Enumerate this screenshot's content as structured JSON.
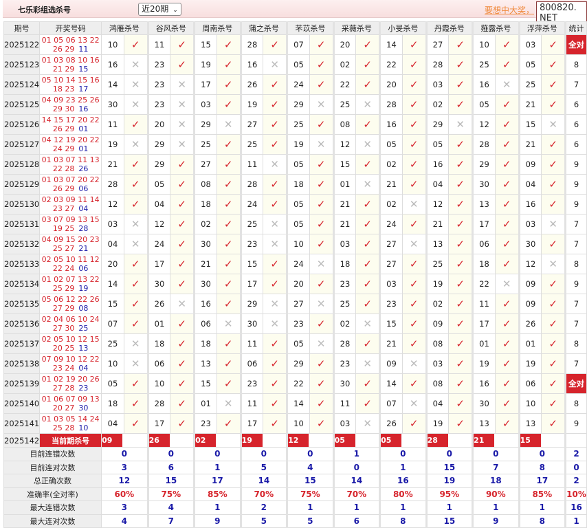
{
  "header": {
    "title": "七乐彩组选杀号",
    "period_select": "近20期",
    "promo_link": "要想中大奖，",
    "promo_box": "800820. NET"
  },
  "colors": {
    "accent_red": "#d6242c",
    "stat_blue": "#1a1aa8"
  },
  "columns": {
    "period": "期号",
    "draw": "开奖号码",
    "stat": "统计",
    "groups": [
      "鸿雁杀号",
      "谷风杀号",
      "周南杀号",
      "蒲之杀号",
      "芣苡杀号",
      "采薇杀号",
      "小旻杀号",
      "丹霞杀号",
      "薤露杀号",
      "浮萍杀号"
    ]
  },
  "rows": [
    {
      "period": "2025122",
      "red1": "01 05 06 13 22",
      "red2": "26 29",
      "blue": "11",
      "kills": [
        [
          "10",
          1
        ],
        [
          "11",
          1
        ],
        [
          "15",
          1
        ],
        [
          "28",
          1
        ],
        [
          "07",
          1
        ],
        [
          "20",
          1
        ],
        [
          "14",
          1
        ],
        [
          "27",
          1
        ],
        [
          "10",
          1
        ],
        [
          "03",
          1
        ]
      ],
      "stat": "全对"
    },
    {
      "period": "2025123",
      "red1": "01 03 08 10 16",
      "red2": "21 29",
      "blue": "15",
      "kills": [
        [
          "16",
          0
        ],
        [
          "23",
          1
        ],
        [
          "19",
          1
        ],
        [
          "16",
          0
        ],
        [
          "05",
          1
        ],
        [
          "02",
          1
        ],
        [
          "22",
          1
        ],
        [
          "28",
          1
        ],
        [
          "25",
          1
        ],
        [
          "05",
          1
        ]
      ],
      "stat": "8"
    },
    {
      "period": "2025124",
      "red1": "05 10 14 15 16",
      "red2": "18 23",
      "blue": "17",
      "kills": [
        [
          "14",
          0
        ],
        [
          "23",
          0
        ],
        [
          "17",
          1
        ],
        [
          "26",
          1
        ],
        [
          "24",
          1
        ],
        [
          "22",
          1
        ],
        [
          "20",
          1
        ],
        [
          "03",
          1
        ],
        [
          "16",
          0
        ],
        [
          "25",
          1
        ]
      ],
      "stat": "7"
    },
    {
      "period": "2025125",
      "red1": "04 09 23 25 26",
      "red2": "29 30",
      "blue": "16",
      "kills": [
        [
          "30",
          0
        ],
        [
          "23",
          0
        ],
        [
          "03",
          1
        ],
        [
          "19",
          1
        ],
        [
          "29",
          0
        ],
        [
          "25",
          0
        ],
        [
          "28",
          1
        ],
        [
          "02",
          1
        ],
        [
          "05",
          1
        ],
        [
          "21",
          1
        ]
      ],
      "stat": "6"
    },
    {
      "period": "2025126",
      "red1": "14 15 17 20 22",
      "red2": "26 29",
      "blue": "01",
      "kills": [
        [
          "11",
          1
        ],
        [
          "20",
          0
        ],
        [
          "29",
          0
        ],
        [
          "27",
          1
        ],
        [
          "25",
          1
        ],
        [
          "08",
          1
        ],
        [
          "16",
          1
        ],
        [
          "29",
          0
        ],
        [
          "12",
          1
        ],
        [
          "15",
          0
        ]
      ],
      "stat": "6"
    },
    {
      "period": "2025127",
      "red1": "04 12 19 20 22",
      "red2": "24 29",
      "blue": "01",
      "kills": [
        [
          "19",
          0
        ],
        [
          "29",
          0
        ],
        [
          "25",
          1
        ],
        [
          "25",
          1
        ],
        [
          "19",
          0
        ],
        [
          "12",
          0
        ],
        [
          "05",
          1
        ],
        [
          "05",
          1
        ],
        [
          "28",
          1
        ],
        [
          "21",
          1
        ]
      ],
      "stat": "6"
    },
    {
      "period": "2025128",
      "red1": "01 03 07 11 13",
      "red2": "22 28",
      "blue": "26",
      "kills": [
        [
          "21",
          1
        ],
        [
          "29",
          1
        ],
        [
          "27",
          1
        ],
        [
          "11",
          0
        ],
        [
          "05",
          1
        ],
        [
          "15",
          1
        ],
        [
          "02",
          1
        ],
        [
          "16",
          1
        ],
        [
          "29",
          1
        ],
        [
          "09",
          1
        ]
      ],
      "stat": "9"
    },
    {
      "period": "2025129",
      "red1": "01 03 07 20 22",
      "red2": "26 29",
      "blue": "06",
      "kills": [
        [
          "28",
          1
        ],
        [
          "05",
          1
        ],
        [
          "08",
          1
        ],
        [
          "28",
          1
        ],
        [
          "18",
          1
        ],
        [
          "01",
          0
        ],
        [
          "21",
          1
        ],
        [
          "04",
          1
        ],
        [
          "30",
          1
        ],
        [
          "04",
          1
        ]
      ],
      "stat": "9"
    },
    {
      "period": "2025130",
      "red1": "02 03 09 11 14",
      "red2": "23 27",
      "blue": "04",
      "kills": [
        [
          "12",
          1
        ],
        [
          "04",
          1
        ],
        [
          "18",
          1
        ],
        [
          "24",
          1
        ],
        [
          "05",
          1
        ],
        [
          "21",
          1
        ],
        [
          "02",
          0
        ],
        [
          "12",
          1
        ],
        [
          "13",
          1
        ],
        [
          "16",
          1
        ]
      ],
      "stat": "9"
    },
    {
      "period": "2025131",
      "red1": "03 07 09 13 15",
      "red2": "19 25",
      "blue": "28",
      "kills": [
        [
          "03",
          0
        ],
        [
          "12",
          1
        ],
        [
          "02",
          1
        ],
        [
          "25",
          0
        ],
        [
          "05",
          1
        ],
        [
          "21",
          1
        ],
        [
          "24",
          1
        ],
        [
          "21",
          1
        ],
        [
          "17",
          1
        ],
        [
          "03",
          0
        ]
      ],
      "stat": "7"
    },
    {
      "period": "2025132",
      "red1": "04 09 15 20 23",
      "red2": "25 27",
      "blue": "21",
      "kills": [
        [
          "04",
          0
        ],
        [
          "24",
          1
        ],
        [
          "30",
          1
        ],
        [
          "23",
          0
        ],
        [
          "10",
          1
        ],
        [
          "03",
          1
        ],
        [
          "27",
          0
        ],
        [
          "13",
          1
        ],
        [
          "06",
          1
        ],
        [
          "30",
          1
        ]
      ],
      "stat": "7"
    },
    {
      "period": "2025133",
      "red1": "02 05 10 11 12",
      "red2": "22 24",
      "blue": "06",
      "kills": [
        [
          "20",
          1
        ],
        [
          "17",
          1
        ],
        [
          "21",
          1
        ],
        [
          "15",
          1
        ],
        [
          "24",
          0
        ],
        [
          "18",
          1
        ],
        [
          "27",
          1
        ],
        [
          "25",
          1
        ],
        [
          "18",
          1
        ],
        [
          "12",
          0
        ]
      ],
      "stat": "8"
    },
    {
      "period": "2025134",
      "red1": "01 02 07 13 22",
      "red2": "25 29",
      "blue": "19",
      "kills": [
        [
          "14",
          1
        ],
        [
          "30",
          1
        ],
        [
          "30",
          1
        ],
        [
          "17",
          1
        ],
        [
          "20",
          1
        ],
        [
          "23",
          1
        ],
        [
          "03",
          1
        ],
        [
          "19",
          1
        ],
        [
          "22",
          0
        ],
        [
          "09",
          1
        ]
      ],
      "stat": "9"
    },
    {
      "period": "2025135",
      "red1": "05 06 12 22 26",
      "red2": "27 29",
      "blue": "08",
      "kills": [
        [
          "15",
          1
        ],
        [
          "26",
          0
        ],
        [
          "16",
          1
        ],
        [
          "29",
          0
        ],
        [
          "27",
          0
        ],
        [
          "25",
          1
        ],
        [
          "23",
          1
        ],
        [
          "02",
          1
        ],
        [
          "11",
          1
        ],
        [
          "09",
          1
        ]
      ],
      "stat": "7"
    },
    {
      "period": "2025136",
      "red1": "02 04 06 10 24",
      "red2": "27 30",
      "blue": "25",
      "kills": [
        [
          "07",
          1
        ],
        [
          "01",
          1
        ],
        [
          "06",
          0
        ],
        [
          "30",
          0
        ],
        [
          "23",
          1
        ],
        [
          "02",
          0
        ],
        [
          "15",
          1
        ],
        [
          "09",
          1
        ],
        [
          "17",
          1
        ],
        [
          "26",
          1
        ]
      ],
      "stat": "7"
    },
    {
      "period": "2025137",
      "red1": "02 05 10 12 15",
      "red2": "20 25",
      "blue": "13",
      "kills": [
        [
          "25",
          0
        ],
        [
          "18",
          1
        ],
        [
          "18",
          1
        ],
        [
          "11",
          1
        ],
        [
          "05",
          0
        ],
        [
          "28",
          1
        ],
        [
          "21",
          1
        ],
        [
          "08",
          1
        ],
        [
          "01",
          1
        ],
        [
          "01",
          1
        ]
      ],
      "stat": "8"
    },
    {
      "period": "2025138",
      "red1": "07 09 10 12 22",
      "red2": "23 24",
      "blue": "04",
      "kills": [
        [
          "10",
          0
        ],
        [
          "06",
          1
        ],
        [
          "13",
          1
        ],
        [
          "06",
          1
        ],
        [
          "29",
          1
        ],
        [
          "23",
          0
        ],
        [
          "09",
          0
        ],
        [
          "03",
          1
        ],
        [
          "19",
          1
        ],
        [
          "19",
          1
        ]
      ],
      "stat": "7"
    },
    {
      "period": "2025139",
      "red1": "01 02 19 20 26",
      "red2": "27 28",
      "blue": "23",
      "kills": [
        [
          "05",
          1
        ],
        [
          "10",
          1
        ],
        [
          "15",
          1
        ],
        [
          "23",
          1
        ],
        [
          "22",
          1
        ],
        [
          "30",
          1
        ],
        [
          "14",
          1
        ],
        [
          "08",
          1
        ],
        [
          "16",
          1
        ],
        [
          "06",
          1
        ]
      ],
      "stat": "全对"
    },
    {
      "period": "2025140",
      "red1": "01 06 07 09 13",
      "red2": "20 27",
      "blue": "30",
      "kills": [
        [
          "18",
          1
        ],
        [
          "28",
          1
        ],
        [
          "01",
          0
        ],
        [
          "11",
          1
        ],
        [
          "14",
          1
        ],
        [
          "11",
          1
        ],
        [
          "07",
          0
        ],
        [
          "04",
          1
        ],
        [
          "30",
          1
        ],
        [
          "10",
          1
        ]
      ],
      "stat": "8"
    },
    {
      "period": "2025141",
      "red1": "01 03 05 14 24",
      "red2": "25 28",
      "blue": "10",
      "kills": [
        [
          "04",
          1
        ],
        [
          "17",
          1
        ],
        [
          "23",
          1
        ],
        [
          "17",
          1
        ],
        [
          "10",
          1
        ],
        [
          "03",
          0
        ],
        [
          "26",
          1
        ],
        [
          "19",
          1
        ],
        [
          "13",
          1
        ],
        [
          "13",
          1
        ]
      ],
      "stat": "9"
    }
  ],
  "current": {
    "period": "2025142",
    "label": "当前期杀号",
    "kills": [
      "09",
      "26",
      "02",
      "19",
      "12",
      "05",
      "05",
      "28",
      "21",
      "15"
    ]
  },
  "marks": {
    "ok": "✓",
    "no": "✕"
  },
  "stats": [
    {
      "label": "目前连错次数",
      "values": [
        "0",
        "0",
        "0",
        "0",
        "0",
        "1",
        "0",
        "0",
        "0",
        "0"
      ],
      "stat": "2"
    },
    {
      "label": "目前连对次数",
      "values": [
        "3",
        "6",
        "1",
        "5",
        "4",
        "0",
        "1",
        "15",
        "7",
        "8"
      ],
      "stat": "0"
    },
    {
      "label": "总正确次数",
      "values": [
        "12",
        "15",
        "17",
        "14",
        "15",
        "14",
        "16",
        "19",
        "18",
        "17"
      ],
      "stat": "2"
    },
    {
      "label": "准确率(全对率)",
      "values": [
        "60%",
        "75%",
        "85%",
        "70%",
        "75%",
        "70%",
        "80%",
        "95%",
        "90%",
        "85%"
      ],
      "stat": "10%",
      "pct": true
    },
    {
      "label": "最大连错次数",
      "values": [
        "3",
        "4",
        "1",
        "2",
        "1",
        "1",
        "1",
        "1",
        "1",
        "1"
      ],
      "stat": "16"
    },
    {
      "label": "最大连对次数",
      "values": [
        "4",
        "7",
        "9",
        "5",
        "5",
        "6",
        "8",
        "15",
        "9",
        "8"
      ],
      "stat": "1"
    }
  ]
}
